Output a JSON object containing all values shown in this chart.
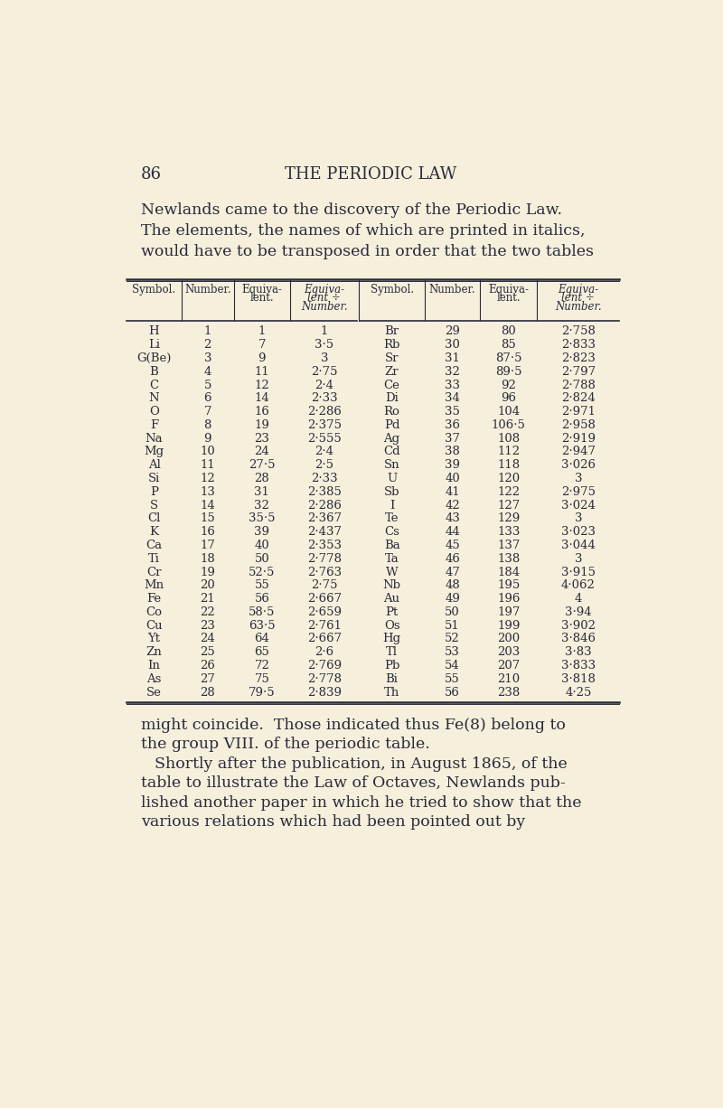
{
  "bg_color": "#f5efdc",
  "text_color": "#2a2a3a",
  "page_number": "86",
  "page_title": "THE PERIODIC LAW",
  "intro_lines": [
    "Newlands came to the discovery of the Periodic Law.",
    "The elements, the names of which are printed in italics,",
    "would have to be transposed in order that the two tables"
  ],
  "left_data": [
    [
      "H",
      "1",
      "1",
      "1"
    ],
    [
      "Li",
      "2",
      "7",
      "3·5"
    ],
    [
      "G(Be)",
      "3",
      "9",
      "3"
    ],
    [
      "B",
      "4",
      "11",
      "2·75"
    ],
    [
      "C",
      "5",
      "12",
      "2·4"
    ],
    [
      "N",
      "6",
      "14",
      "2·33"
    ],
    [
      "O",
      "7",
      "16",
      "2·286"
    ],
    [
      "F",
      "8",
      "19",
      "2·375"
    ],
    [
      "Na",
      "9",
      "23",
      "2·555"
    ],
    [
      "Mg",
      "10",
      "24",
      "2·4"
    ],
    [
      "Al",
      "11",
      "27·5",
      "2·5"
    ],
    [
      "Si",
      "12",
      "28",
      "2·33"
    ],
    [
      "P",
      "13",
      "31",
      "2·385"
    ],
    [
      "S",
      "14",
      "32",
      "2·286"
    ],
    [
      "Cl",
      "15",
      "35·5",
      "2·367"
    ],
    [
      "K",
      "16",
      "39",
      "2·437"
    ],
    [
      "Ca",
      "17",
      "40",
      "2·353"
    ],
    [
      "Ti",
      "18",
      "50",
      "2·778"
    ],
    [
      "Cr",
      "19",
      "52·5",
      "2·763"
    ],
    [
      "Mn",
      "20",
      "55",
      "2·75"
    ],
    [
      "Fe",
      "21",
      "56",
      "2·667"
    ],
    [
      "Co",
      "22",
      "58·5",
      "2·659"
    ],
    [
      "Cu",
      "23",
      "63·5",
      "2·761"
    ],
    [
      "Yt",
      "24",
      "64",
      "2·667"
    ],
    [
      "Zn",
      "25",
      "65",
      "2·6"
    ],
    [
      "In",
      "26",
      "72",
      "2·769"
    ],
    [
      "As",
      "27",
      "75",
      "2·778"
    ],
    [
      "Se",
      "28",
      "79·5",
      "2·839"
    ]
  ],
  "right_data": [
    [
      "Br",
      "29",
      "80",
      "2·758"
    ],
    [
      "Rb",
      "30",
      "85",
      "2·833"
    ],
    [
      "Sr",
      "31",
      "87·5",
      "2·823"
    ],
    [
      "Zr",
      "32",
      "89·5",
      "2·797"
    ],
    [
      "Ce",
      "33",
      "92",
      "2·788"
    ],
    [
      "Di",
      "34",
      "96",
      "2·824"
    ],
    [
      "Ro",
      "35",
      "104",
      "2·971"
    ],
    [
      "Pd",
      "36",
      "106·5",
      "2·958"
    ],
    [
      "Ag",
      "37",
      "108",
      "2·919"
    ],
    [
      "Cd",
      "38",
      "112",
      "2·947"
    ],
    [
      "Sn",
      "39",
      "118",
      "3·026"
    ],
    [
      "U",
      "40",
      "120",
      "3"
    ],
    [
      "Sb",
      "41",
      "122",
      "2·975"
    ],
    [
      "I",
      "42",
      "127",
      "3·024"
    ],
    [
      "Te",
      "43",
      "129",
      "3"
    ],
    [
      "Cs",
      "44",
      "133",
      "3·023"
    ],
    [
      "Ba",
      "45",
      "137",
      "3·044"
    ],
    [
      "Ta",
      "46",
      "138",
      "3"
    ],
    [
      "W",
      "47",
      "184",
      "3·915"
    ],
    [
      "Nb",
      "48",
      "195",
      "4·062"
    ],
    [
      "Au",
      "49",
      "196",
      "4"
    ],
    [
      "Pt",
      "50",
      "197",
      "3·94"
    ],
    [
      "Os",
      "51",
      "199",
      "3·902"
    ],
    [
      "Hg",
      "52",
      "200",
      "3·846"
    ],
    [
      "Tl",
      "53",
      "203",
      "3·83"
    ],
    [
      "Pb",
      "54",
      "207",
      "3·833"
    ],
    [
      "Bi",
      "55",
      "210",
      "3·818"
    ],
    [
      "Th",
      "56",
      "238",
      "4·25"
    ]
  ],
  "footer_lines": [
    [
      "might coincide.  Those indicated thus Fe(8) belong to",
      false
    ],
    [
      "the group VIII. of the periodic table.",
      false
    ],
    [
      "Shortly after the publication, in August 1865, of the",
      true
    ],
    [
      "table to illustrate the Law of Octaves, Newlands pub-",
      false
    ],
    [
      "lished another paper in which he tried to show that the",
      false
    ],
    [
      "various relations which had been pointed out by",
      false
    ]
  ]
}
